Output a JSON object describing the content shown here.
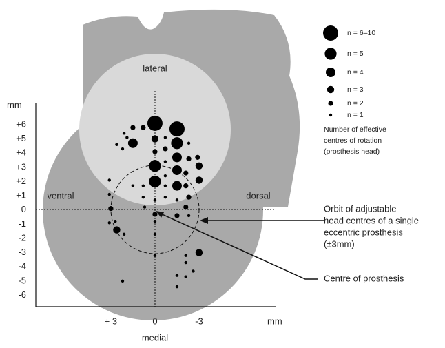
{
  "chart_data": {
    "type": "scatter",
    "annotations": {
      "lateral": "lateral",
      "medial": "medial",
      "ventral": "ventral",
      "dorsal": "dorsal",
      "orbit": [
        "Orbit of adjustable",
        "head centres of a single",
        "eccentric prosthesis",
        "(±3mm)"
      ],
      "centre": "Centre of prosthesis"
    },
    "ylabel": "mm",
    "xlabel": "mm",
    "xlim": [
      8.1,
      -8.2
    ],
    "ylim": [
      -6.8,
      7.5
    ],
    "xticks": [
      {
        "value": 3,
        "label": "+ 3"
      },
      0,
      -3
    ],
    "yticks": [
      {
        "value": 6,
        "label": "+6"
      },
      {
        "value": 5,
        "label": "+5"
      },
      {
        "value": 4,
        "label": "+4"
      },
      {
        "value": 3,
        "label": "+3"
      },
      {
        "value": 2,
        "label": "+2"
      },
      {
        "value": 1,
        "label": "+1"
      },
      0,
      -1,
      -2,
      -3,
      -4,
      -5,
      -6
    ],
    "legend_title": [
      "Number of effective",
      "centres of rotation",
      "(prosthesis head)"
    ],
    "legend": [
      {
        "value": 6,
        "label": "n = 6–10"
      },
      {
        "value": 5,
        "label": "n = 5"
      },
      {
        "value": 4,
        "label": "n = 4"
      },
      {
        "value": 3,
        "label": "n = 3"
      },
      {
        "value": 2,
        "label": "n = 2"
      },
      {
        "value": 1,
        "label": "n = 1"
      }
    ],
    "color": "#000000",
    "x": [
      0,
      -1.5,
      1.5,
      0,
      0,
      -1.5,
      -1.5,
      -1.5,
      -1.5,
      -3,
      -3,
      -2.9,
      0,
      0,
      1.5,
      0.8,
      2.1,
      1.9,
      2.6,
      2.2,
      -0.7,
      -0.7,
      -0.7,
      -2.3,
      -2.3,
      -2.1,
      -2.1,
      -2.3,
      -2.1,
      -1.5,
      -0.7,
      -0.7,
      -0.7,
      0.8,
      0.8,
      1.5,
      3.1,
      3.1,
      3.0,
      2.7,
      2.6,
      3.1,
      2.1,
      0,
      0,
      0,
      -1.5,
      -2.3,
      -3,
      -2.1,
      -2.1,
      -2.1,
      -1.5,
      -1.5,
      -2.6,
      2.2,
      0,
      0.7,
      0
    ],
    "y": [
      6.1,
      5.7,
      4.7,
      3.1,
      2.0,
      4.7,
      3.7,
      2.8,
      1.7,
      3.1,
      2.1,
      3.7,
      5.0,
      4.1,
      5.8,
      5.8,
      5.4,
      5.1,
      4.6,
      4.3,
      5.1,
      4.3,
      3.4,
      4.7,
      3.6,
      2.6,
      1.7,
      0.9,
      0.2,
      0.7,
      2.4,
      1.7,
      0.9,
      1.7,
      0.9,
      1.7,
      2.1,
      1.1,
      0.1,
      -0.8,
      -1.4,
      -0.9,
      -1.7,
      -0.3,
      -0.8,
      -1.7,
      -0.4,
      -0.4,
      -3.0,
      -3.2,
      -3.7,
      -4.7,
      -4.6,
      -5.4,
      -4.3,
      -5.0,
      -3.2,
      0.2,
      0.7
    ],
    "sizes": [
      6,
      6,
      4,
      5,
      5,
      5,
      4,
      4,
      4,
      3,
      3,
      2,
      3,
      2,
      2,
      2,
      1,
      1,
      1,
      1,
      1,
      2,
      1,
      1,
      2,
      2,
      2,
      2,
      2,
      1,
      1,
      1,
      1,
      1,
      1,
      1,
      1,
      1,
      2,
      1,
      3,
      1,
      1,
      2,
      1,
      1,
      2,
      1,
      3,
      1,
      1,
      1,
      1,
      1,
      1,
      1,
      1,
      1,
      1
    ]
  }
}
